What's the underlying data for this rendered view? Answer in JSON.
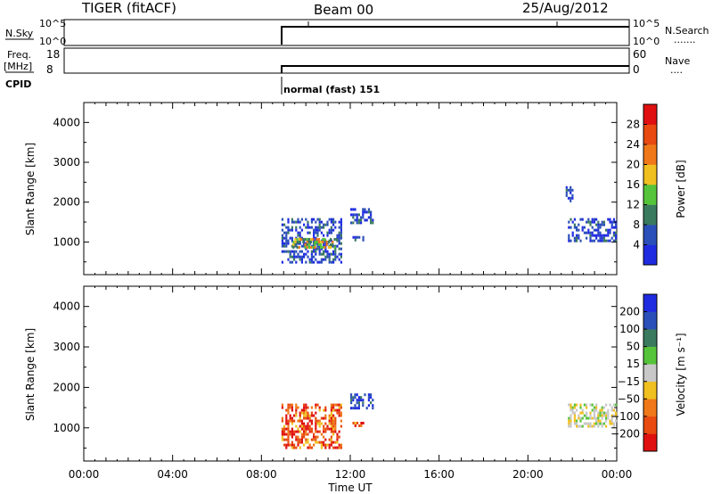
{
  "header": {
    "radar": "TIGER (fitACF)",
    "beam": "Beam 00",
    "date": "25/Aug/2012"
  },
  "top_panels": {
    "nsky": {
      "label": "N.Sky",
      "ticks": [
        "10^5",
        "10^0"
      ],
      "right_ticks": [
        "10^5",
        "10^0"
      ],
      "right_label": "N.Search",
      "right_dots": "......."
    },
    "freq": {
      "label_line1": "Freq.",
      "label_line2": "[MHz]",
      "ticks": [
        "18",
        "8"
      ],
      "right_ticks": [
        "60",
        "0"
      ],
      "right_label": "Nave",
      "right_dots": "...."
    },
    "cpid": {
      "label": "CPID",
      "mode_text": "normal (fast) 151"
    }
  },
  "colors": {
    "power": [
      "#1f2be0",
      "#2b4fb8",
      "#3a7a5e",
      "#56c43a",
      "#f0c020",
      "#f07818",
      "#e84a10",
      "#e01010"
    ],
    "velocity": [
      "#e01010",
      "#e84a10",
      "#f07818",
      "#f0c020",
      "#c8c8c8",
      "#56c43a",
      "#3a7a5e",
      "#2b4fb8",
      "#1f2be0"
    ]
  },
  "chart_data": [
    {
      "type": "heatmap",
      "title": "Power",
      "ylabel": "Slant Range [km]",
      "xlabel": "Time UT",
      "xlim": [
        0,
        24
      ],
      "ylim": [
        180,
        4500
      ],
      "yticks": [
        "1000",
        "2000",
        "3000",
        "4000"
      ],
      "xticks": [
        "00:00",
        "04:00",
        "08:00",
        "12:00",
        "16:00",
        "20:00",
        "00:00"
      ],
      "colorbar": {
        "label": "Power [dB]",
        "ticks": [
          "4",
          "8",
          "12",
          "16",
          "20",
          "24",
          "28"
        ],
        "range": [
          0,
          32
        ]
      },
      "regions": [
        {
          "t0": 8.9,
          "t1": 11.6,
          "r0": 500,
          "r1": 1600,
          "level": "low"
        },
        {
          "t0": 9.4,
          "t1": 11.4,
          "r0": 850,
          "r1": 1100,
          "level": "mid"
        },
        {
          "t0": 12.0,
          "t1": 13.0,
          "r0": 1500,
          "r1": 1850,
          "level": "low"
        },
        {
          "t0": 12.1,
          "t1": 12.6,
          "r0": 1050,
          "r1": 1150,
          "level": "low"
        },
        {
          "t0": 21.8,
          "t1": 24.0,
          "r0": 1050,
          "r1": 1600,
          "level": "low"
        },
        {
          "t0": 21.7,
          "t1": 22.0,
          "r0": 2000,
          "r1": 2400,
          "level": "low"
        }
      ]
    },
    {
      "type": "heatmap",
      "title": "Velocity",
      "ylabel": "Slant Range [km]",
      "xlabel": "Time UT",
      "xlim": [
        0,
        24
      ],
      "ylim": [
        180,
        4500
      ],
      "yticks": [
        "1000",
        "2000",
        "3000",
        "4000"
      ],
      "xticks": [
        "00:00",
        "04:00",
        "08:00",
        "12:00",
        "16:00",
        "20:00",
        "00:00"
      ],
      "colorbar": {
        "label": "Velocity [m s⁻¹]",
        "ticks": [
          "200",
          "100",
          "50",
          "15",
          "−15",
          "−50",
          "−100",
          "−200"
        ],
        "range": [
          -250,
          250
        ]
      },
      "regions": [
        {
          "t0": 8.9,
          "t1": 11.6,
          "r0": 500,
          "r1": 1600,
          "level": "neg"
        },
        {
          "t0": 12.0,
          "t1": 13.0,
          "r0": 1500,
          "r1": 1850,
          "level": "pos"
        },
        {
          "t0": 12.1,
          "t1": 12.6,
          "r0": 1050,
          "r1": 1150,
          "level": "neg"
        },
        {
          "t0": 21.8,
          "t1": 24.0,
          "r0": 1050,
          "r1": 1600,
          "level": "zero"
        }
      ]
    }
  ]
}
